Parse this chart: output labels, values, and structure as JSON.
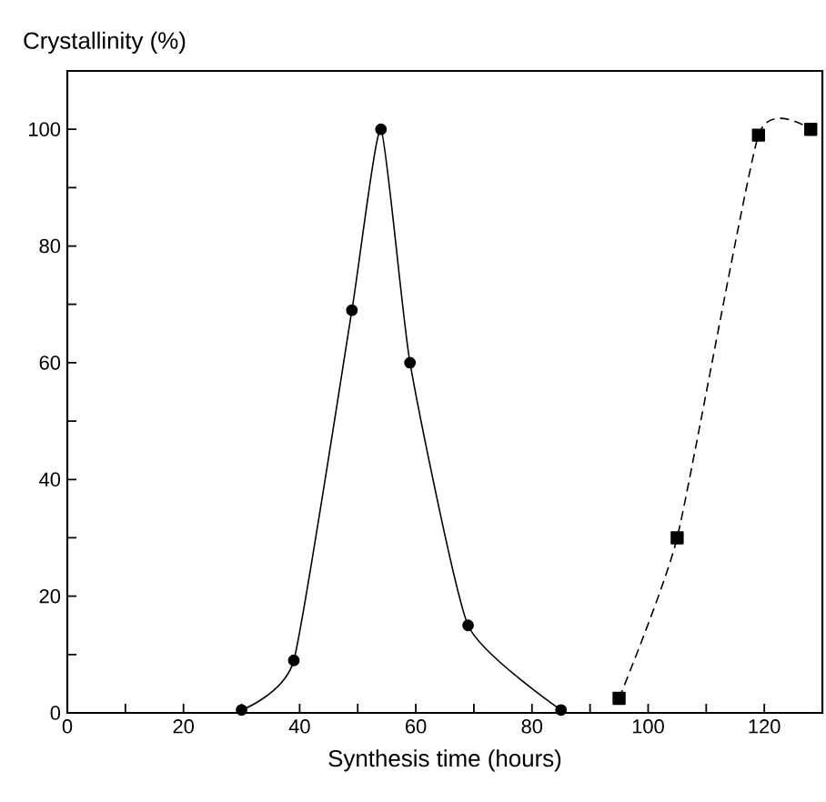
{
  "chart_data": {
    "type": "line",
    "xlabel": "Synthesis time (hours)",
    "ylabel": "Crystallinity (%)",
    "xlim": [
      0,
      130
    ],
    "ylim": [
      0,
      110
    ],
    "xticks": [
      0,
      {
        "value": 10,
        "label": null
      },
      20,
      {
        "value": 30,
        "label": null
      },
      40,
      {
        "value": 50,
        "label": null
      },
      60,
      {
        "value": 70,
        "label": null
      },
      80,
      {
        "value": 90,
        "label": null
      },
      100,
      {
        "value": 110,
        "label": null
      },
      120
    ],
    "yticks": [
      0,
      {
        "value": 10,
        "label": null
      },
      20,
      {
        "value": 30,
        "label": null
      },
      40,
      {
        "value": 50,
        "label": null
      },
      60,
      {
        "value": 70,
        "label": null
      },
      80,
      {
        "value": 90,
        "label": null
      },
      100
    ],
    "series": [
      {
        "color": "#000000",
        "marker": "circle",
        "line_style": "solid",
        "x": [
          30,
          39,
          49,
          54,
          59,
          69,
          85
        ],
        "values": [
          0.5,
          9,
          69,
          100,
          60,
          15,
          0.5
        ]
      },
      {
        "color": "#000000",
        "marker": "square",
        "line_style": "dashed",
        "x": [
          95,
          105,
          119,
          128
        ],
        "values": [
          2.5,
          30,
          99,
          100
        ]
      }
    ]
  }
}
